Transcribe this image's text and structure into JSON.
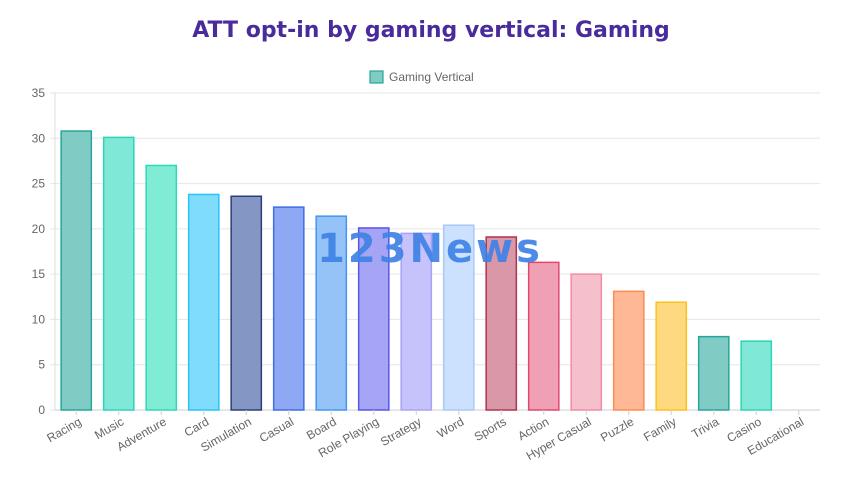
{
  "title": "ATT opt-in by gaming vertical: Gaming",
  "watermark": "123News",
  "colors": {
    "title": "#4a2b9c",
    "grid": "#e6e6e6",
    "axis": "#666666"
  },
  "chart_data": {
    "type": "bar",
    "categories": [
      "Racing",
      "Music",
      "Adventure",
      "Card",
      "Simulation",
      "Casual",
      "Board",
      "Role Playing",
      "Strategy",
      "Word",
      "Sports",
      "Action",
      "Hyper Casual",
      "Puzzle",
      "Family",
      "Trivia",
      "Casino",
      "Educational"
    ],
    "series": [
      {
        "name": "Gaming Vertical",
        "values": [
          30.8,
          30.1,
          27.0,
          23.8,
          23.6,
          22.4,
          21.4,
          20.1,
          19.5,
          20.4,
          19.1,
          16.3,
          15.0,
          13.1,
          11.9,
          8.1,
          7.6,
          0
        ]
      }
    ],
    "ylim": [
      0,
      35
    ],
    "yticks": [
      0,
      5,
      10,
      15,
      20,
      25,
      30,
      35
    ],
    "grid": true,
    "legend": "top",
    "bar_fills": [
      "#80cbc4",
      "#80e8d6",
      "#80ecd6",
      "#80dcfd",
      "#8497c4",
      "#8fa8f4",
      "#95c3f8",
      "#a5a4f5",
      "#c5c2fc",
      "#cbe1fd",
      "#d898a8",
      "#f0a0b4",
      "#f6bfcc",
      "#ffb896",
      "#ffd97f",
      "#80cbc4",
      "#80e8d6",
      "#80ecd6"
    ],
    "bar_strokes": [
      "#26a69a",
      "#2dd4b8",
      "#2fd9b4",
      "#29c3f7",
      "#2c3e7a",
      "#3f6fe0",
      "#4496f0",
      "#5b55e8",
      "#a9a2f8",
      "#a6c9f8",
      "#b0324c",
      "#e0486c",
      "#f18ca6",
      "#ff8a55",
      "#ffbf1f",
      "#26a69a",
      "#2dd4b8",
      "#2fd9b4"
    ]
  }
}
